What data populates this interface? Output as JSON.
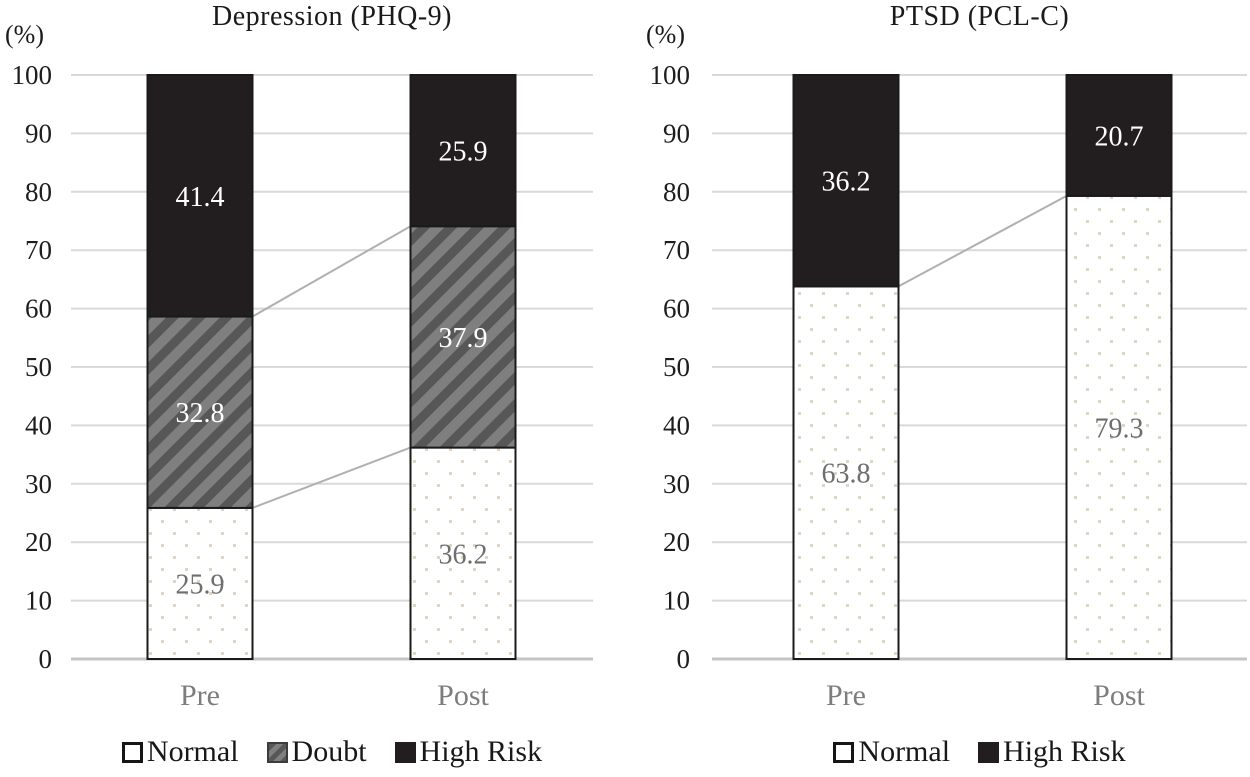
{
  "colors": {
    "solid_black": "#221e1f",
    "hatch_base": "#7f7f7f",
    "hatch_stripe": "#575757",
    "dot": "#ddd6c0",
    "bar_border": "#1a1a1a",
    "gridline": "#d9d9d9",
    "axis_line": "#c4c4c4",
    "connector_line": "#b0b0b0",
    "tick_text": "#1d1d1d",
    "category_text": "#7d7d7d",
    "value_on_dots": "#6e6e6e",
    "value_on_dark": "#ffffff"
  },
  "chart_data": [
    {
      "type": "bar",
      "stacked": true,
      "title": "Depression (PHQ-9)",
      "y_unit_label": "(%)",
      "categories": [
        "Pre",
        "Post"
      ],
      "series": [
        {
          "name": "Normal",
          "fill": "dots",
          "values": [
            25.9,
            36.2
          ]
        },
        {
          "name": "Doubt",
          "fill": "hatch",
          "values": [
            32.8,
            37.9
          ]
        },
        {
          "name": "High Risk",
          "fill": "solid-black",
          "values": [
            41.4,
            25.9
          ]
        }
      ],
      "ylim": [
        0,
        100
      ],
      "y_tick_step": 10,
      "grid": true,
      "connector_lines": true,
      "legend_position": "bottom"
    },
    {
      "type": "bar",
      "stacked": true,
      "title": "PTSD (PCL-C)",
      "y_unit_label": "(%)",
      "categories": [
        "Pre",
        "Post"
      ],
      "series": [
        {
          "name": "Normal",
          "fill": "dots",
          "values": [
            63.8,
            79.3
          ]
        },
        {
          "name": "High Risk",
          "fill": "solid-black",
          "values": [
            36.2,
            20.7
          ]
        }
      ],
      "ylim": [
        0,
        100
      ],
      "y_tick_step": 10,
      "grid": true,
      "connector_lines": true,
      "legend_position": "bottom"
    }
  ]
}
